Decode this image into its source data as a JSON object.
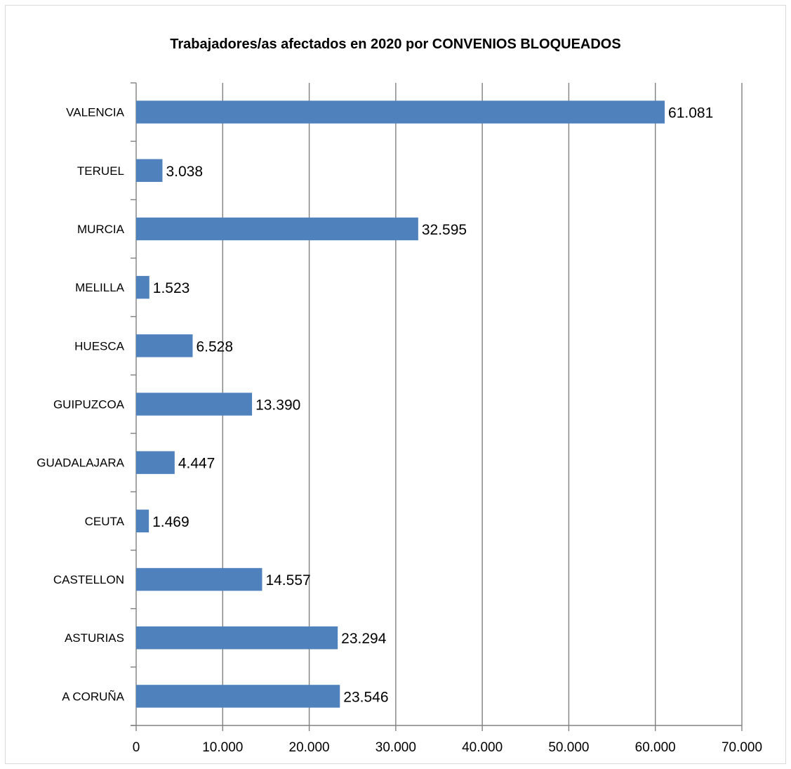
{
  "chart_data": {
    "type": "bar",
    "orientation": "horizontal",
    "title": "Trabajadores/as afectados en 2020 por CONVENIOS BLOQUEADOS",
    "categories": [
      "VALENCIA",
      "TERUEL",
      "MURCIA",
      "MELILLA",
      "HUESCA",
      "GUIPUZCOA",
      "GUADALAJARA",
      "CEUTA",
      "CASTELLON",
      "ASTURIAS",
      "A CORUÑA"
    ],
    "values": [
      61081,
      3038,
      32595,
      1523,
      6528,
      13390,
      4447,
      1469,
      14557,
      23294,
      23546
    ],
    "data_labels": [
      "61.081",
      "3.038",
      "32.595",
      "1.523",
      "6.528",
      "13.390",
      "4.447",
      "1.469",
      "14.557",
      "23.294",
      "23.546"
    ],
    "xlim": [
      0,
      70000
    ],
    "x_ticks": [
      0,
      10000,
      20000,
      30000,
      40000,
      50000,
      60000,
      70000
    ],
    "x_tick_labels": [
      "0",
      "10.000",
      "20.000",
      "30.000",
      "40.000",
      "50.000",
      "60.000",
      "70.000"
    ],
    "xlabel": "",
    "ylabel": "",
    "grid": "vertical",
    "legend": "none",
    "colors": {
      "bar": "#4f81bd",
      "grid": "#808080",
      "axis": "#808080"
    }
  }
}
